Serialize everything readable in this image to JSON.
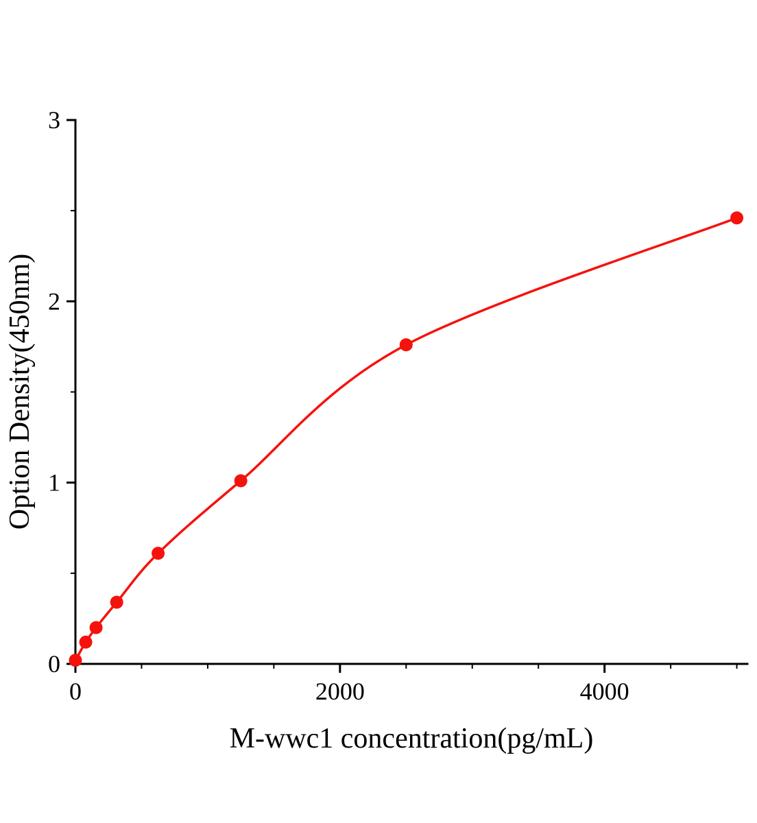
{
  "page": {
    "background": "#ffffff"
  },
  "chart_data": {
    "type": "scatter",
    "title": "",
    "xlabel": "M-wwc1 concentration(pg/mL)",
    "ylabel": "Option Density(450nm)",
    "x": [
      0,
      78,
      156,
      312,
      625,
      1250,
      2500,
      5000
    ],
    "y": [
      0.02,
      0.12,
      0.2,
      0.34,
      0.61,
      1.01,
      1.76,
      2.46
    ],
    "fit_type": "smooth-saturating-curve",
    "xlim": [
      0,
      5080
    ],
    "ylim": [
      0,
      3
    ],
    "x_major_ticks": [
      0,
      2000,
      4000
    ],
    "x_minor_ticks": [
      500,
      1000,
      1500,
      2500,
      3000,
      3500,
      4500,
      5000
    ],
    "y_major_ticks": [
      0,
      1,
      2,
      3
    ],
    "y_minor_ticks": [
      0.5,
      1.5,
      2.5
    ],
    "grid": false,
    "legend": "none",
    "colors": {
      "series": "#f5120d",
      "axis": "#000000",
      "background": "#ffffff"
    }
  }
}
